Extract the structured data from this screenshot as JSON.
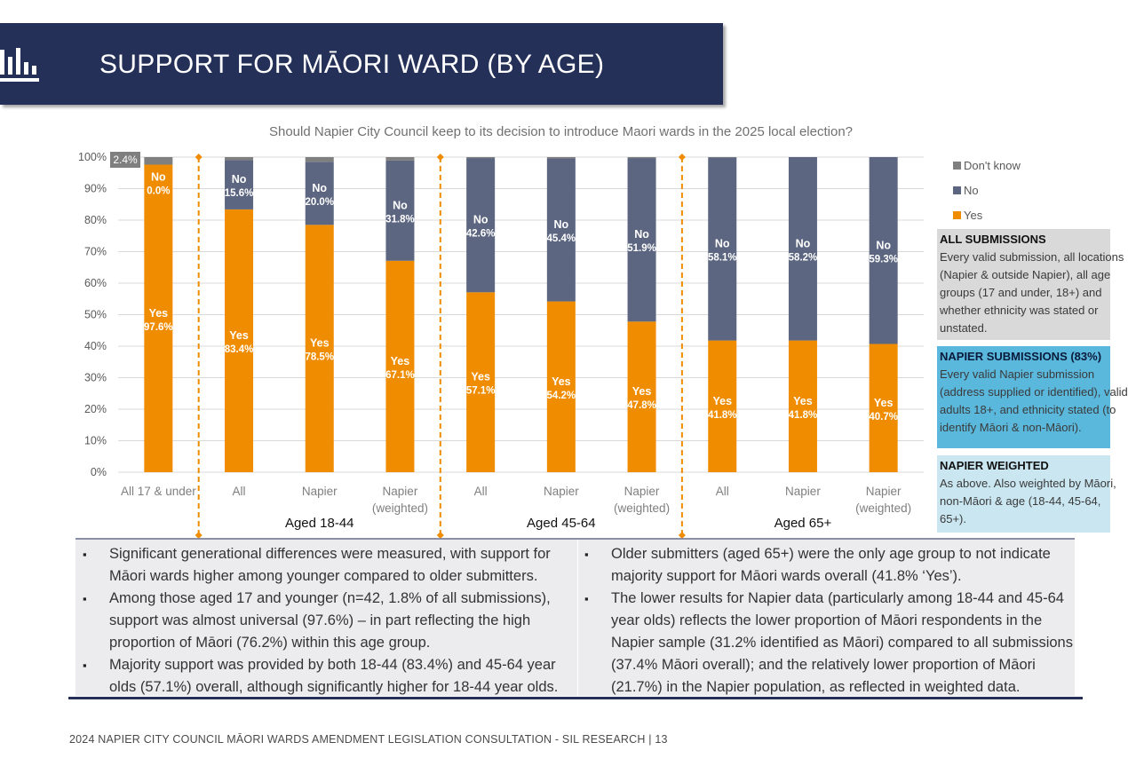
{
  "header": {
    "title": "SUPPORT FOR MĀORI WARD (BY AGE)",
    "icon": "bar-chart-icon",
    "bar_color": "#253058"
  },
  "chart_data": {
    "type": "bar",
    "stacked": true,
    "title": "Should Napier City Council keep to its decision to introduce Maori wards in the 2025 local election?",
    "ylim": [
      0,
      100
    ],
    "y_ticks": [
      "0%",
      "10%",
      "20%",
      "30%",
      "40%",
      "50%",
      "60%",
      "70%",
      "80%",
      "90%",
      "100%"
    ],
    "categories": [
      "All 17 & under",
      "All",
      "Napier",
      "Napier (weighted)",
      "All",
      "Napier",
      "Napier (weighted)",
      "All",
      "Napier",
      "Napier (weighted)"
    ],
    "category_lines": [
      [
        "All 17 & under"
      ],
      [
        "All"
      ],
      [
        "Napier"
      ],
      [
        "Napier",
        "(weighted)"
      ],
      [
        "All"
      ],
      [
        "Napier"
      ],
      [
        "Napier",
        "(weighted)"
      ],
      [
        "All"
      ],
      [
        "Napier"
      ],
      [
        "Napier",
        "(weighted)"
      ]
    ],
    "groups": [
      {
        "label": "Aged 18-44",
        "categories": [
          1,
          2,
          3
        ]
      },
      {
        "label": "Aged 45-64",
        "categories": [
          4,
          5,
          6
        ]
      },
      {
        "label": "Aged 65+",
        "categories": [
          7,
          8,
          9
        ]
      }
    ],
    "series": [
      {
        "name": "Yes",
        "color": "#f08c00",
        "values": [
          97.6,
          83.4,
          78.5,
          67.1,
          57.1,
          54.2,
          47.8,
          41.8,
          41.8,
          40.7
        ],
        "labels": [
          "97.6%",
          "83.4%",
          "78.5%",
          "67.1%",
          "57.1%",
          "54.2%",
          "47.8%",
          "41.8%",
          "41.8%",
          "40.7%"
        ]
      },
      {
        "name": "No",
        "color": "#5c6680",
        "values": [
          0.0,
          15.6,
          20.0,
          31.8,
          42.6,
          45.4,
          51.9,
          58.1,
          58.2,
          59.3
        ],
        "labels": [
          "0.0%",
          "15.6%",
          "20.0%",
          "31.8%",
          "42.6%",
          "45.4%",
          "51.9%",
          "58.1%",
          "58.2%",
          "59.3%"
        ]
      },
      {
        "name": "Don't know",
        "color": "#7f7f7f",
        "values": [
          2.4,
          1.0,
          1.5,
          1.1,
          0.3,
          0.4,
          0.3,
          0.1,
          0.0,
          0.0
        ],
        "labels": [
          "2.4%",
          "",
          "",
          "",
          "",
          "",
          "",
          "",
          "",
          ""
        ]
      }
    ],
    "legend": {
      "placement": "right",
      "order": [
        "Don't know",
        "No",
        "Yes"
      ]
    },
    "grid": true
  },
  "info_boxes": [
    {
      "title": "ALL SUBMISSIONS",
      "lines": [
        "Every valid submission, all locations",
        "(Napier & outside Napier), all age",
        "groups (17 and under, 18+) and",
        "whether ethnicity was stated or",
        "unstated."
      ]
    },
    {
      "title": "NAPIER SUBMISSIONS (83%)",
      "lines": [
        "Every valid Napier submission",
        "(address supplied or identified), valid",
        "adults 18+, and ethnicity stated (to",
        "identify Māori & non-Māori)."
      ]
    },
    {
      "title": "NAPIER WEIGHTED",
      "lines": [
        "As above. Also weighted by Māori,",
        "non-Māori & age (18-44, 45-64,",
        "65+)."
      ]
    }
  ],
  "notes": {
    "left": [
      "Significant generational differences were measured, with support for Māori wards higher among younger compared to older submitters.",
      "Among those aged 17 and younger (n=42, 1.8% of all submissions), support was almost universal (97.6%) – in part reflecting the high proportion of Māori (76.2%) within this age group.",
      "Majority support was provided by both 18-44 (83.4%) and 45-64 year olds (57.1%) overall, although significantly higher for 18-44 year olds."
    ],
    "right": [
      "Older submitters (aged 65+) were the only age group to not indicate majority support for Māori wards overall (41.8% ‘Yes’).",
      "The lower results for Napier data (particularly among 18-44 and 45-64 year olds) reflects the lower proportion of Māori respondents in the Napier sample (31.2% identified as Māori) compared to all submissions (37.4% Māori overall); and the relatively lower proportion of Māori (21.7%) in the Napier population, as reflected in weighted data."
    ]
  },
  "footer": "2024 NAPIER CITY COUNCIL MĀORI WARDS AMENDMENT LEGISLATION CONSULTATION - SIL RESEARCH | 13"
}
